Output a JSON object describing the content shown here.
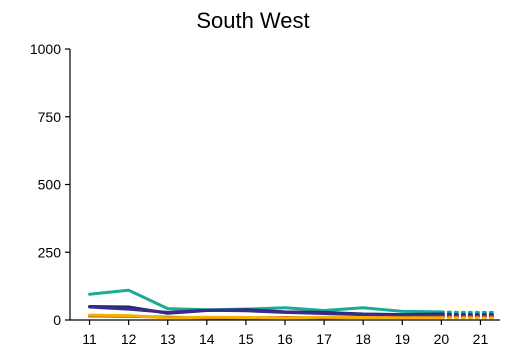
{
  "chart_data": {
    "type": "line",
    "title": "South West",
    "xlabel": "",
    "ylabel": "",
    "x": [
      11,
      12,
      13,
      14,
      15,
      16,
      17,
      18,
      19,
      20
    ],
    "x_ticks": [
      "11",
      "12",
      "13",
      "14",
      "15",
      "16",
      "17",
      "18",
      "19",
      "20",
      "21"
    ],
    "y_ticks": [
      "0",
      "250",
      "500",
      "750",
      "1000"
    ],
    "xlim": [
      10.5,
      21.5
    ],
    "ylim": [
      0,
      1000
    ],
    "grid": false,
    "legend": "none",
    "series": [
      {
        "color": "#1aaa96",
        "values": [
          95,
          110,
          42,
          38,
          40,
          45,
          35,
          45,
          32,
          30
        ],
        "projection": [
          28,
          28,
          28
        ]
      },
      {
        "color": "#1f2a6e",
        "values": [
          50,
          48,
          25,
          35,
          38,
          30,
          28,
          22,
          20,
          22
        ],
        "projection": [
          20,
          20,
          20
        ]
      },
      {
        "color": "#3a2a8a",
        "values": [
          48,
          40,
          28,
          36,
          34,
          28,
          24,
          20,
          16,
          18
        ],
        "projection": [
          16,
          16,
          16
        ]
      },
      {
        "color": "#b02a30",
        "values": [
          15,
          14,
          10,
          8,
          7,
          9,
          8,
          10,
          10,
          12
        ],
        "projection": [
          12,
          12,
          12
        ]
      },
      {
        "color": "#f0b400",
        "values": [
          18,
          16,
          8,
          10,
          9,
          8,
          10,
          9,
          8,
          8
        ],
        "projection": [
          8,
          8,
          8
        ]
      }
    ],
    "projection_x": [
      20.4,
      20.9,
      21.4
    ]
  }
}
